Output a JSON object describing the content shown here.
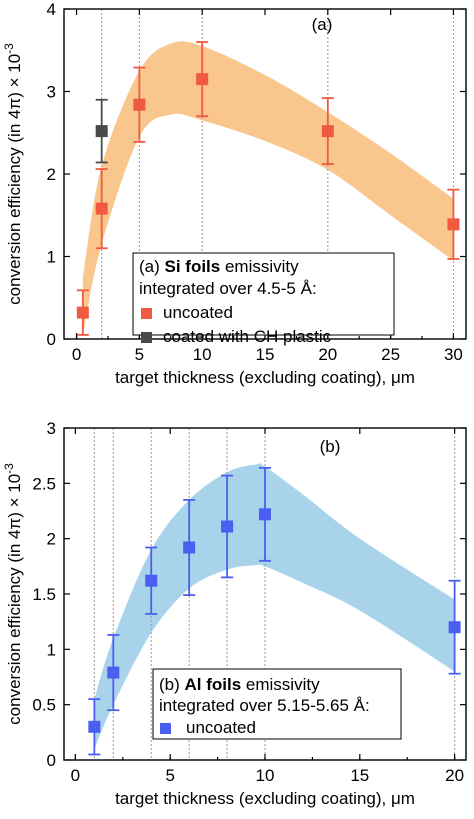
{
  "chart_data": [
    {
      "type": "scatter",
      "panel_label": "(a)",
      "xlabel": "target thickness (excluding coating), μm",
      "ylabel": "conversion efficiency (in 4π) × 10",
      "ylabel_exponent": "-3",
      "xlim": [
        -1,
        31
      ],
      "ylim": [
        0,
        4
      ],
      "xticks": [
        0,
        5,
        10,
        15,
        20,
        25,
        30
      ],
      "yticks": [
        0,
        1,
        2,
        3,
        4
      ],
      "vgrid_x": [
        2,
        5,
        10,
        20,
        30
      ],
      "legend": {
        "placement": "bottom-right",
        "title_prefix": "(a) ",
        "title_bold": "Si foils",
        "title_suffix": " emissivity",
        "subtitle": "integrated over 4.5-5 Å:"
      },
      "band": {
        "color": "#f9c78e",
        "x": [
          0.5,
          2,
          5,
          7.5,
          10,
          15,
          20,
          25,
          30
        ],
        "upper": [
          0.75,
          2.1,
          3.25,
          3.58,
          3.55,
          3.2,
          2.75,
          2.25,
          1.7
        ],
        "lower": [
          0.05,
          1.15,
          2.45,
          2.72,
          2.65,
          2.4,
          2.05,
          1.5,
          0.95
        ]
      },
      "series": [
        {
          "name": "uncoated",
          "color": "#f05a41",
          "x": [
            0.5,
            2,
            5,
            10,
            20,
            30
          ],
          "y": [
            0.32,
            1.58,
            2.84,
            3.15,
            2.52,
            1.39
          ],
          "err": [
            0.27,
            0.48,
            0.45,
            0.45,
            0.4,
            0.42
          ]
        },
        {
          "name": "coated with CH plastic",
          "color": "#4a4a4a",
          "x": [
            2
          ],
          "y": [
            2.52
          ],
          "err": [
            0.38
          ]
        }
      ]
    },
    {
      "type": "scatter",
      "panel_label": "(b)",
      "xlabel": "target thickness (excluding coating), μm",
      "ylabel": "conversion efficiency (in 4π) × 10",
      "ylabel_exponent": "-3",
      "xlim": [
        -0.6,
        20.6
      ],
      "ylim": [
        0,
        3
      ],
      "xticks": [
        0,
        5,
        10,
        15,
        20
      ],
      "yticks": [
        0,
        0.5,
        1,
        1.5,
        2,
        2.5,
        3
      ],
      "ytick_labels": [
        "0",
        "0.5",
        "1",
        "1.5",
        "2",
        "2.5",
        "3"
      ],
      "vgrid_x": [
        1,
        2,
        4,
        6,
        8,
        10,
        20
      ],
      "legend": {
        "placement": "bottom-right",
        "title_prefix": "(b) ",
        "title_bold": "Al foils",
        "title_suffix": " emissivity",
        "subtitle": "integrated over 5.15-5.65 Å:"
      },
      "band": {
        "color": "#a8d3ea",
        "x": [
          1,
          2,
          4,
          6,
          8,
          9.5,
          10,
          12,
          15,
          20
        ],
        "upper": [
          0.55,
          1.1,
          1.9,
          2.35,
          2.6,
          2.67,
          2.65,
          2.4,
          2.0,
          1.45
        ],
        "lower": [
          0.1,
          0.5,
          1.15,
          1.55,
          1.72,
          1.76,
          1.75,
          1.6,
          1.35,
          0.8
        ]
      },
      "series": [
        {
          "name": "uncoated",
          "color": "#4a5ff0",
          "x": [
            1,
            2,
            4,
            6,
            8,
            10,
            20
          ],
          "y": [
            0.3,
            0.79,
            1.62,
            1.92,
            2.11,
            2.22,
            1.2
          ],
          "err": [
            0.25,
            0.34,
            0.3,
            0.43,
            0.46,
            0.42,
            0.42
          ]
        }
      ]
    }
  ]
}
